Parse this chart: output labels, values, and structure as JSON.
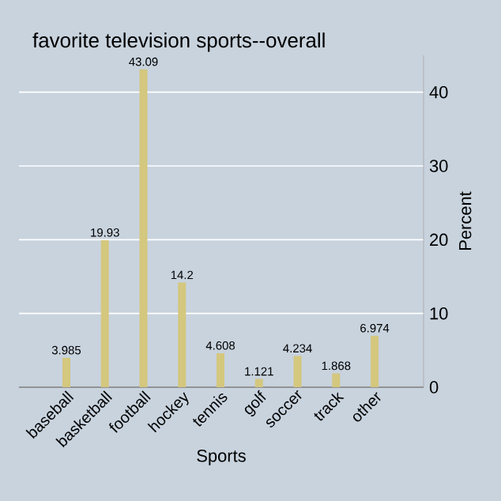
{
  "chart_data": {
    "type": "bar",
    "title": "favorite television sports--overall",
    "xlabel": "Sports",
    "ylabel": "Percent",
    "categories": [
      "baseball",
      "basketball",
      "football",
      "hockey",
      "tennis",
      "golf",
      "soccer",
      "track",
      "other"
    ],
    "values": [
      3.985,
      19.93,
      43.09,
      14.2,
      4.608,
      1.121,
      4.234,
      1.868,
      6.974
    ],
    "value_labels": [
      "3.985",
      "19.93",
      "43.09",
      "14.2",
      "4.608",
      "1.121",
      "4.234",
      "1.868",
      "6.974"
    ],
    "color": "#d4c77e",
    "ylim": [
      0,
      45
    ],
    "yticks": [
      0,
      10,
      20,
      30,
      40
    ],
    "grid": "y"
  }
}
